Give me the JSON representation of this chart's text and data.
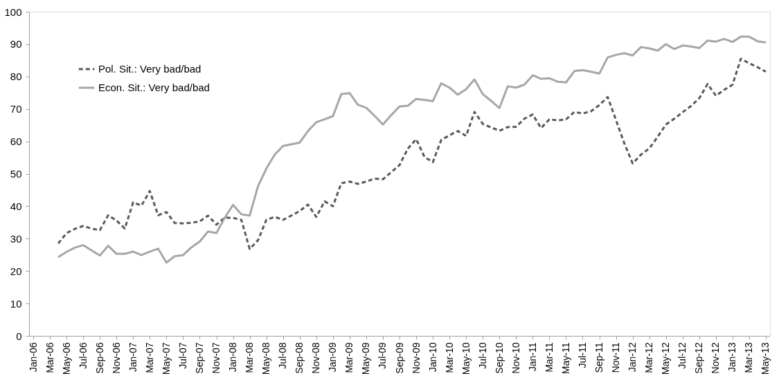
{
  "chart_data": {
    "type": "line",
    "categories": [
      "Jan-06",
      null,
      "Mar-06",
      null,
      "May-06",
      null,
      "Jul-06",
      null,
      "Sep-06",
      null,
      "Nov-06",
      null,
      "Jan-07",
      null,
      "Mar-07",
      null,
      "May-07",
      null,
      "Jul-07",
      null,
      "Sep-07",
      null,
      "Nov-07",
      null,
      "Jan-08",
      null,
      "Mar-08",
      null,
      "May-08",
      null,
      "Jul-08",
      null,
      "Sep-08",
      null,
      "Nov-08",
      null,
      "Jan-09",
      null,
      "Mar-09",
      null,
      "May-09",
      null,
      "Jul-09",
      null,
      "Sep-09",
      null,
      "Nov-09",
      null,
      "Jan-10",
      null,
      "Mar-10",
      null,
      "May-10",
      null,
      "Jul-10",
      null,
      "Sep-10",
      null,
      "Nov-10",
      null,
      "Jan-11",
      null,
      "Mar-11",
      null,
      "May-11",
      null,
      "Jul-11",
      null,
      "Sep-11",
      null,
      "Nov-11",
      null,
      "Jan-12",
      null,
      "Mar-12",
      null,
      "May-12",
      null,
      "Jul-12",
      null,
      "Sep-12",
      null,
      "Nov-12",
      null,
      "Jan-13",
      null,
      "Mar-13",
      null,
      "May-13"
    ],
    "series": [
      {
        "name": "Pol. Sit.: Very bad/bad",
        "color": "#595959",
        "line_style": "dashed",
        "values": [
          null,
          null,
          null,
          28.5,
          31.7,
          33.0,
          33.9,
          33.1,
          32.6,
          37.2,
          35.6,
          33.1,
          41.2,
          40.2,
          44.7,
          37.2,
          38.2,
          34.8,
          34.7,
          34.9,
          35.3,
          37.1,
          34.3,
          36.5,
          36.4,
          35.8,
          26.8,
          29.5,
          35.8,
          36.7,
          35.8,
          37.1,
          38.5,
          40.5,
          36.7,
          41.5,
          40.0,
          47.1,
          47.6,
          46.9,
          47.6,
          48.5,
          48.3,
          50.5,
          52.7,
          57.8,
          60.7,
          55.2,
          53.6,
          60.4,
          61.9,
          63.2,
          61.7,
          69.1,
          65.4,
          64.3,
          63.3,
          64.4,
          64.5,
          67.0,
          68.3,
          64.1,
          66.8,
          66.5,
          66.8,
          69.1,
          68.6,
          69.3,
          71.2,
          73.7,
          66.6,
          59.4,
          53.2,
          55.9,
          57.8,
          61.4,
          65.2,
          67.0,
          69.0,
          70.9,
          73.3,
          77.7,
          74.1,
          75.9,
          77.5,
          85.5,
          84.1,
          82.9,
          81.5
        ]
      },
      {
        "name": "Econ. Sit.: Very bad/bad",
        "color": "#a6a6a6",
        "line_style": "solid",
        "values": [
          null,
          null,
          null,
          24.3,
          25.9,
          27.2,
          28.0,
          26.4,
          24.8,
          27.8,
          25.3,
          25.3,
          26.0,
          24.9,
          26.0,
          26.9,
          22.6,
          24.6,
          24.9,
          27.3,
          29.1,
          32.2,
          31.7,
          36.4,
          40.4,
          37.5,
          37.1,
          46.2,
          51.6,
          55.9,
          58.6,
          59.1,
          59.6,
          63.2,
          65.9,
          66.8,
          67.8,
          74.6,
          74.9,
          71.3,
          70.4,
          67.9,
          65.2,
          68.1,
          70.8,
          71.0,
          73.1,
          72.8,
          72.4,
          77.9,
          76.6,
          74.4,
          76.1,
          79.1,
          74.6,
          72.5,
          70.3,
          77.0,
          76.6,
          77.5,
          80.4,
          79.3,
          79.5,
          78.4,
          78.2,
          81.7,
          82.0,
          81.5,
          80.9,
          85.9,
          86.7,
          87.2,
          86.5,
          89.1,
          88.7,
          88.0,
          90.0,
          88.5,
          89.6,
          89.3,
          88.8,
          91.1,
          90.8,
          91.6,
          90.7,
          92.3,
          92.3,
          90.9,
          90.5
        ]
      }
    ],
    "ylim": [
      0,
      100
    ],
    "yticks": [
      0,
      10,
      20,
      30,
      40,
      50,
      60,
      70,
      80,
      90,
      100
    ],
    "grid": false,
    "legend": "top left",
    "marker": "none"
  }
}
